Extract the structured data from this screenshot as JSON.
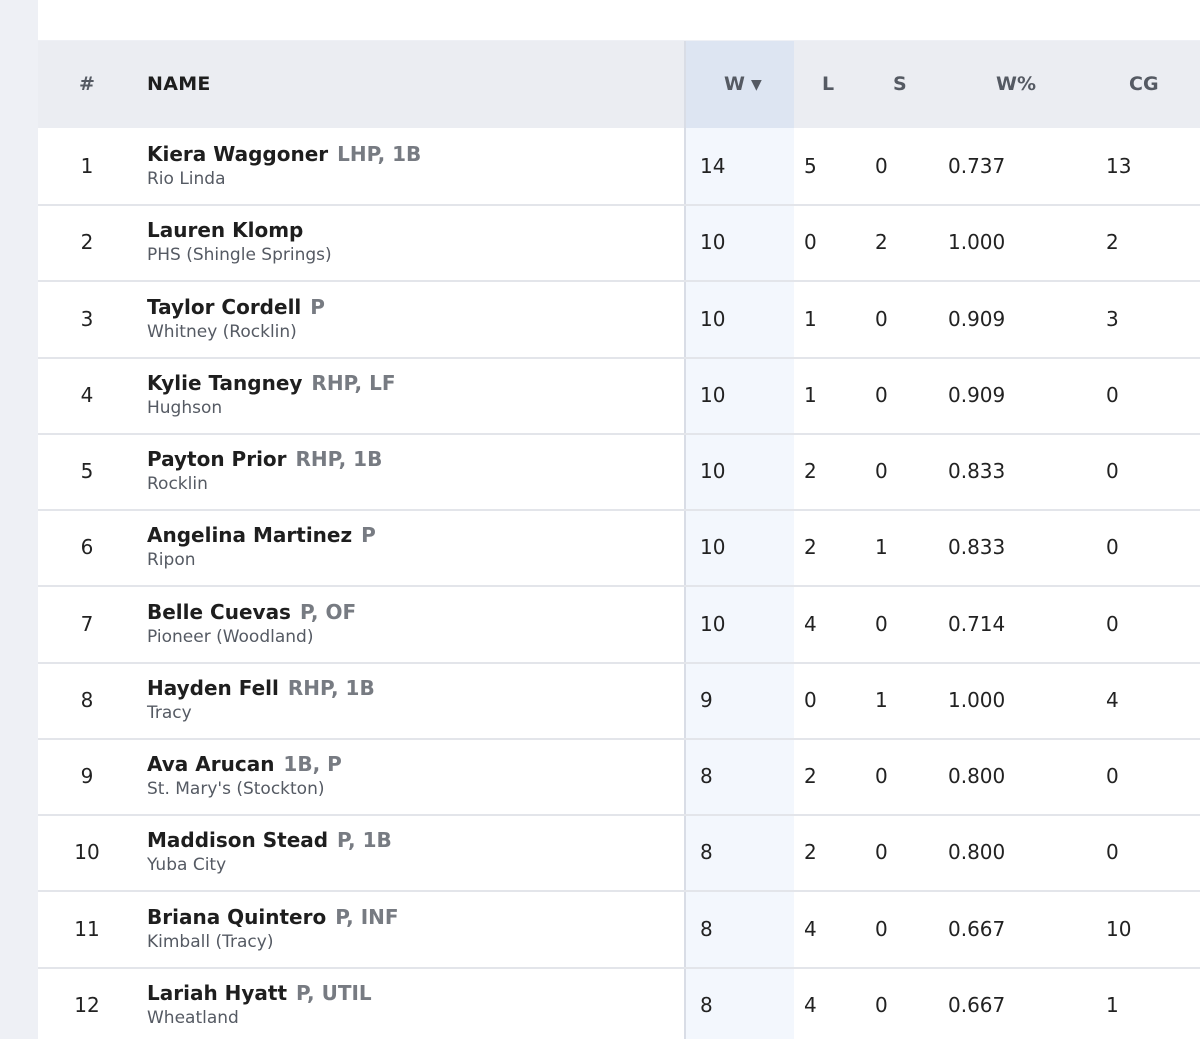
{
  "columns": {
    "rank": "#",
    "name": "NAME",
    "w": "W",
    "w_sort_icon": "sort-desc-icon",
    "l": "L",
    "s": "S",
    "wpct": "W%",
    "cg": "CG"
  },
  "colors": {
    "header_bg": "#ebedf2",
    "sorted_header_bg": "#dde5f2",
    "sorted_column_bg": "#f3f7fd",
    "page_bg": "#eef0f5"
  },
  "rows": [
    {
      "rank": "1",
      "name": "Kiera Waggoner",
      "pos": "LHP, 1B",
      "school": "Rio Linda",
      "w": "14",
      "l": "5",
      "s": "0",
      "wpct": "0.737",
      "cg": "13"
    },
    {
      "rank": "2",
      "name": "Lauren Klomp",
      "pos": "",
      "school": "PHS (Shingle Springs)",
      "w": "10",
      "l": "0",
      "s": "2",
      "wpct": "1.000",
      "cg": "2"
    },
    {
      "rank": "3",
      "name": "Taylor Cordell",
      "pos": "P",
      "school": "Whitney (Rocklin)",
      "w": "10",
      "l": "1",
      "s": "0",
      "wpct": "0.909",
      "cg": "3"
    },
    {
      "rank": "4",
      "name": "Kylie Tangney",
      "pos": "RHP, LF",
      "school": "Hughson",
      "w": "10",
      "l": "1",
      "s": "0",
      "wpct": "0.909",
      "cg": "0"
    },
    {
      "rank": "5",
      "name": "Payton Prior",
      "pos": "RHP, 1B",
      "school": "Rocklin",
      "w": "10",
      "l": "2",
      "s": "0",
      "wpct": "0.833",
      "cg": "0"
    },
    {
      "rank": "6",
      "name": "Angelina Martinez",
      "pos": "P",
      "school": "Ripon",
      "w": "10",
      "l": "2",
      "s": "1",
      "wpct": "0.833",
      "cg": "0"
    },
    {
      "rank": "7",
      "name": "Belle Cuevas",
      "pos": "P, OF",
      "school": "Pioneer (Woodland)",
      "w": "10",
      "l": "4",
      "s": "0",
      "wpct": "0.714",
      "cg": "0"
    },
    {
      "rank": "8",
      "name": "Hayden Fell",
      "pos": "RHP, 1B",
      "school": "Tracy",
      "w": "9",
      "l": "0",
      "s": "1",
      "wpct": "1.000",
      "cg": "4"
    },
    {
      "rank": "9",
      "name": "Ava Arucan",
      "pos": "1B, P",
      "school": "St. Mary's (Stockton)",
      "w": "8",
      "l": "2",
      "s": "0",
      "wpct": "0.800",
      "cg": "0"
    },
    {
      "rank": "10",
      "name": "Maddison Stead",
      "pos": "P, 1B",
      "school": "Yuba City",
      "w": "8",
      "l": "2",
      "s": "0",
      "wpct": "0.800",
      "cg": "0"
    },
    {
      "rank": "11",
      "name": "Briana Quintero",
      "pos": "P, INF",
      "school": "Kimball (Tracy)",
      "w": "8",
      "l": "4",
      "s": "0",
      "wpct": "0.667",
      "cg": "10"
    },
    {
      "rank": "12",
      "name": "Lariah Hyatt",
      "pos": "P, UTIL",
      "school": "Wheatland",
      "w": "8",
      "l": "4",
      "s": "0",
      "wpct": "0.667",
      "cg": "1"
    }
  ]
}
